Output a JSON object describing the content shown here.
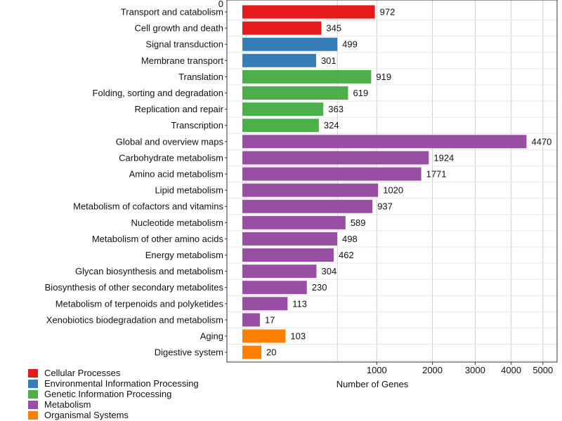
{
  "chart_data": {
    "type": "bar",
    "orientation": "horizontal",
    "title": "",
    "top_label": "0",
    "xlabel": "Number of Genes",
    "ylabel": "",
    "xlim": [
      0,
      5300
    ],
    "xticks": [
      1000,
      2000,
      3000,
      4000,
      5000
    ],
    "xtick_labels": [
      "1000",
      "2000",
      "3000",
      "4000",
      "5000"
    ],
    "grid": true,
    "legend_position": "bottom-left",
    "groups": [
      {
        "name": "Cellular Processes",
        "color": "#e41a1c"
      },
      {
        "name": "Environmental Information Processing",
        "color": "#377eb8"
      },
      {
        "name": "Genetic Information Processing",
        "color": "#4daf4a"
      },
      {
        "name": "Metabolism",
        "color": "#984ea3"
      },
      {
        "name": "Organismal Systems",
        "color": "#ff7f00"
      }
    ],
    "categories": [
      "Transport and catabolism",
      "Cell growth and death",
      "Signal transduction",
      "Membrane transport",
      "Translation",
      "Folding, sorting and degradation",
      "Replication and repair",
      "Transcription",
      "Global and overview maps",
      "Carbohydrate metabolism",
      "Amino acid metabolism",
      "Lipid metabolism",
      "Metabolism of cofactors and vitamins",
      "Nucleotide metabolism",
      "Metabolism of other amino acids",
      "Energy metabolism",
      "Glycan biosynthesis and metabolism",
      "Biosynthesis of other secondary metabolites",
      "Metabolism of terpenoids and polyketides",
      "Xenobiotics biodegradation and metabolism",
      "Aging",
      "Digestive system"
    ],
    "values": [
      972,
      345,
      499,
      301,
      919,
      619,
      363,
      324,
      4470,
      1924,
      1771,
      1020,
      937,
      589,
      498,
      462,
      304,
      230,
      113,
      17,
      103,
      20
    ],
    "category_group": [
      0,
      0,
      1,
      1,
      2,
      2,
      2,
      2,
      3,
      3,
      3,
      3,
      3,
      3,
      3,
      3,
      3,
      3,
      3,
      3,
      4,
      4
    ]
  }
}
